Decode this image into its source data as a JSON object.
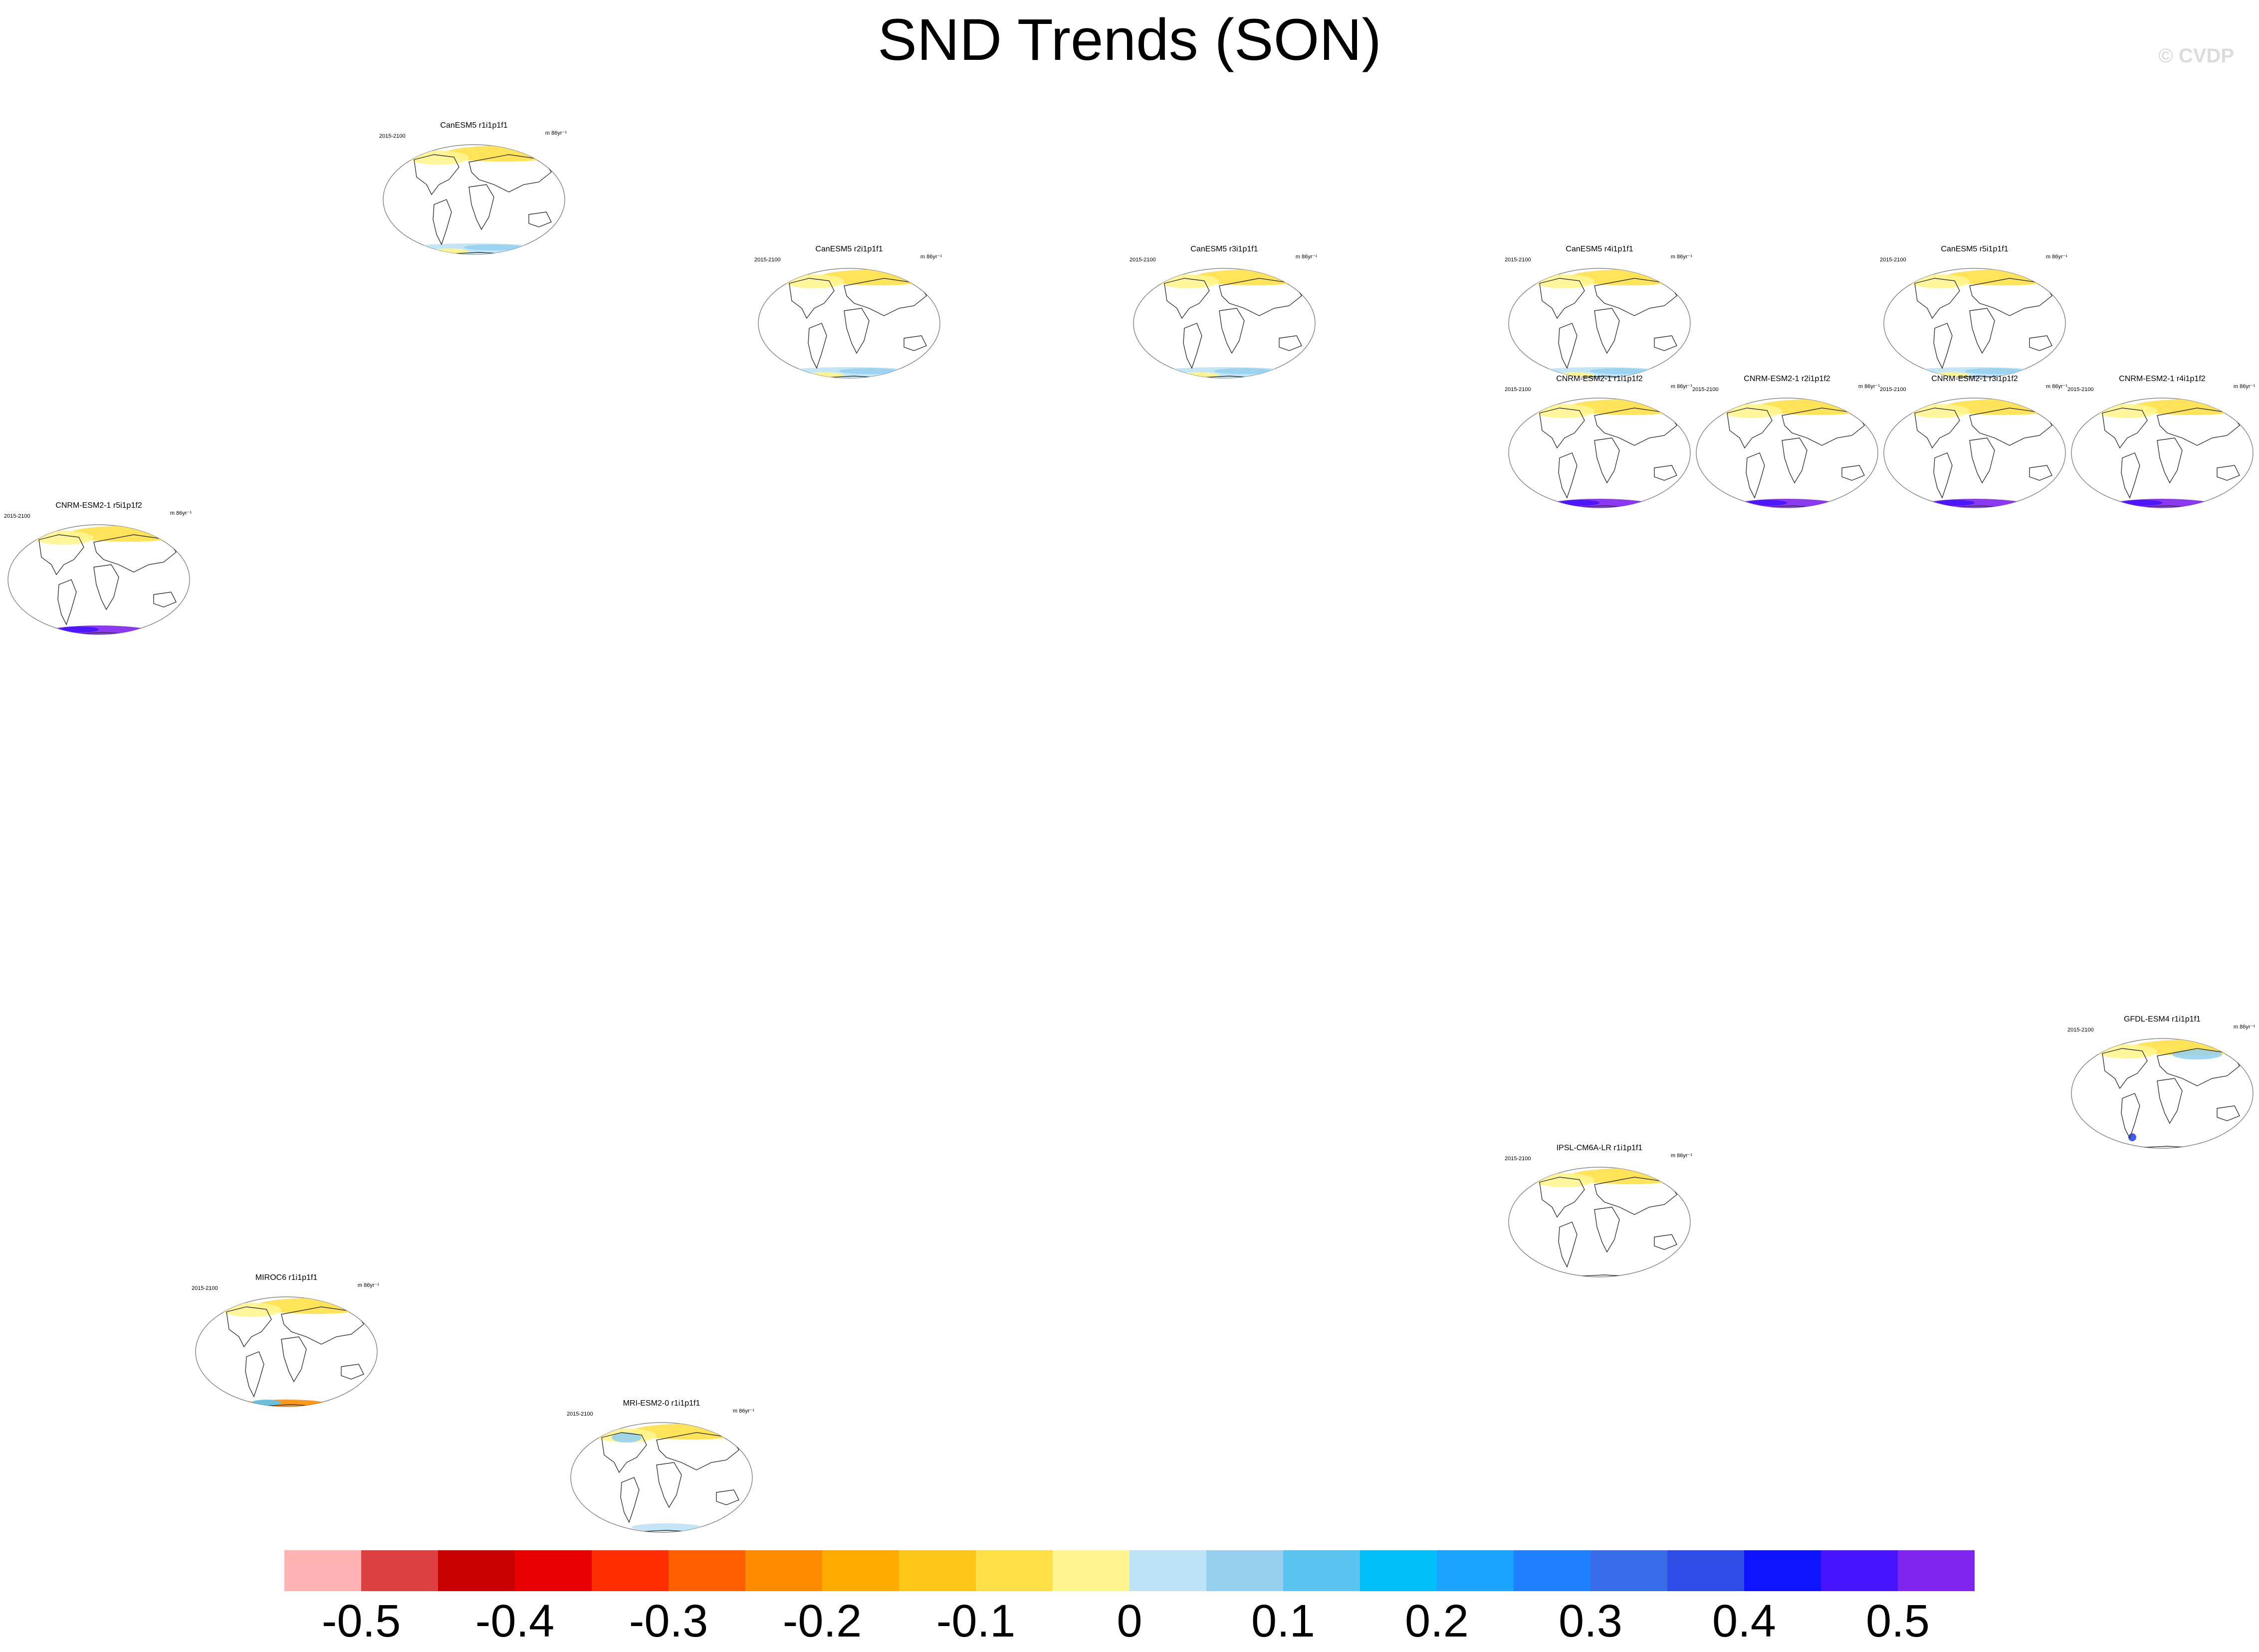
{
  "title": "SND Trends (SON)",
  "copyright": "© CVDP",
  "panels": [
    {
      "title": "CanESM5 r1i1p1f1",
      "years": "2015-2100",
      "units": "m 86yr⁻¹",
      "pattern": "canesm"
    },
    {
      "title": "CanESM5 r2i1p1f1",
      "years": "2015-2100",
      "units": "m 86yr⁻¹",
      "pattern": "canesm"
    },
    {
      "title": "CanESM5 r3i1p1f1",
      "years": "2015-2100",
      "units": "m 86yr⁻¹",
      "pattern": "canesm"
    },
    {
      "title": "CanESM5 r4i1p1f1",
      "years": "2015-2100",
      "units": "m 86yr⁻¹",
      "pattern": "canesm"
    },
    {
      "title": "CanESM5 r5i1p1f1",
      "years": "2015-2100",
      "units": "m 86yr⁻¹",
      "pattern": "canesm"
    },
    {
      "title": "CNRM-ESM2-1 r1i1p1f2",
      "years": "2015-2100",
      "units": "m 86yr⁻¹",
      "pattern": "cnrm"
    },
    {
      "title": "CNRM-ESM2-1 r2i1p1f2",
      "years": "2015-2100",
      "units": "m 86yr⁻¹",
      "pattern": "cnrm"
    },
    {
      "title": "CNRM-ESM2-1 r3i1p1f2",
      "years": "2015-2100",
      "units": "m 86yr⁻¹",
      "pattern": "cnrm"
    },
    {
      "title": "CNRM-ESM2-1 r4i1p1f2",
      "years": "2015-2100",
      "units": "m 86yr⁻¹",
      "pattern": "cnrm"
    },
    {
      "title": "CNRM-ESM2-1 r5i1p1f2",
      "years": "2015-2100",
      "units": "m 86yr⁻¹",
      "pattern": "cnrm"
    },
    {
      "title": "GFDL-ESM4 r1i1p1f1",
      "years": "2015-2100",
      "units": "m 86yr⁻¹",
      "pattern": "gfdl"
    },
    {
      "title": "IPSL-CM6A-LR r1i1p1f1",
      "years": "2015-2100",
      "units": "m 86yr⁻¹",
      "pattern": "ipsl"
    },
    {
      "title": "MIROC6 r1i1p1f1",
      "years": "2015-2100",
      "units": "m 86yr⁻¹",
      "pattern": "miroc"
    },
    {
      "title": "MRI-ESM2-0 r1i1p1f1",
      "years": "2015-2100",
      "units": "m 86yr⁻¹",
      "pattern": "mri"
    }
  ],
  "colorbar": {
    "colors": [
      "#ffb3b3",
      "#dc4040",
      "#c80000",
      "#e60000",
      "#ff2d00",
      "#ff5f00",
      "#ff8c00",
      "#ffab00",
      "#ffc71a",
      "#ffe046",
      "#fff48f",
      "#bde3f6",
      "#97d0ee",
      "#5ac3f0",
      "#00bff8",
      "#1aa4ff",
      "#1e80ff",
      "#386ce8",
      "#2e4de6",
      "#0f14ff",
      "#4614ff",
      "#8025f0"
    ],
    "labels": [
      "-0.5",
      "-0.4",
      "-0.3",
      "-0.2",
      "-0.1",
      "0",
      "0.1",
      "0.2",
      "0.3",
      "0.4",
      "0.5"
    ]
  }
}
